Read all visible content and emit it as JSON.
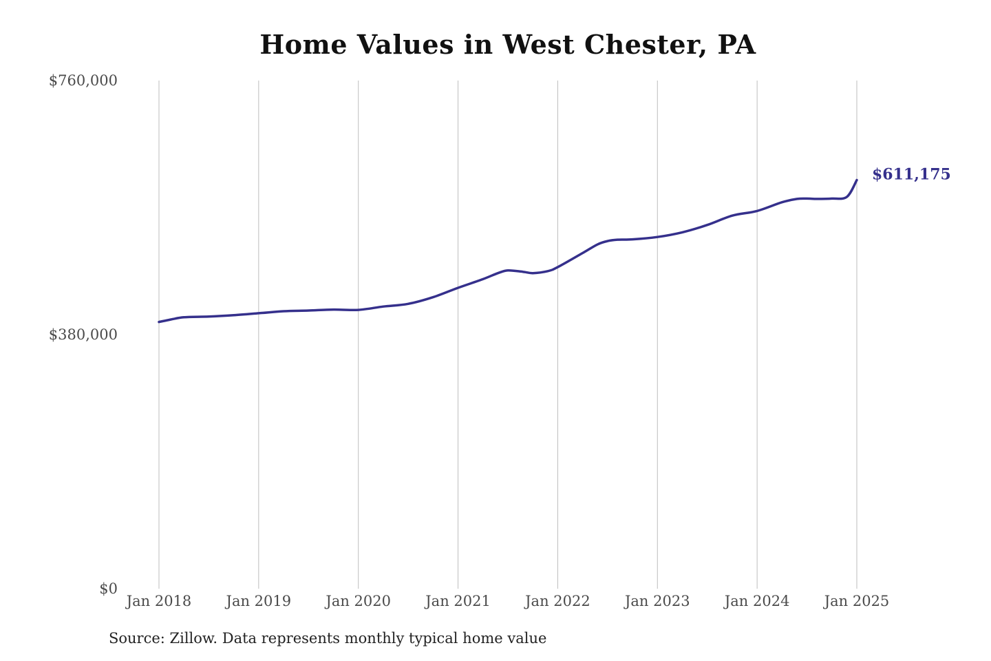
{
  "chart_data": {
    "type": "line",
    "title": "Home Values in West Chester, PA",
    "ylim": [
      0,
      760000
    ],
    "y_ticks": [
      {
        "value": 760000,
        "label": "$760,000"
      },
      {
        "value": 380000,
        "label": "$380,000"
      },
      {
        "value": 0,
        "label": "$0"
      }
    ],
    "x_ticks": [
      {
        "value": 2018,
        "label": "Jan 2018"
      },
      {
        "value": 2019,
        "label": "Jan 2019"
      },
      {
        "value": 2020,
        "label": "Jan 2020"
      },
      {
        "value": 2021,
        "label": "Jan 2021"
      },
      {
        "value": 2022,
        "label": "Jan 2022"
      },
      {
        "value": 2023,
        "label": "Jan 2023"
      },
      {
        "value": 2024,
        "label": "Jan 2024"
      },
      {
        "value": 2025,
        "label": "Jan 2025"
      }
    ],
    "grid": "vertical",
    "series": [
      {
        "color": "#35308c",
        "points": [
          {
            "x": 2018.0,
            "y": 399000
          },
          {
            "x": 2018.1,
            "y": 402000
          },
          {
            "x": 2018.25,
            "y": 406000
          },
          {
            "x": 2018.5,
            "y": 407000
          },
          {
            "x": 2018.75,
            "y": 409000
          },
          {
            "x": 2019.0,
            "y": 412000
          },
          {
            "x": 2019.25,
            "y": 415000
          },
          {
            "x": 2019.5,
            "y": 416000
          },
          {
            "x": 2019.75,
            "y": 417500
          },
          {
            "x": 2020.0,
            "y": 417000
          },
          {
            "x": 2020.25,
            "y": 422000
          },
          {
            "x": 2020.5,
            "y": 426000
          },
          {
            "x": 2020.75,
            "y": 436000
          },
          {
            "x": 2021.0,
            "y": 450000
          },
          {
            "x": 2021.25,
            "y": 463000
          },
          {
            "x": 2021.4,
            "y": 472000
          },
          {
            "x": 2021.5,
            "y": 476000
          },
          {
            "x": 2021.65,
            "y": 474000
          },
          {
            "x": 2021.75,
            "y": 472000
          },
          {
            "x": 2021.9,
            "y": 475000
          },
          {
            "x": 2022.0,
            "y": 481000
          },
          {
            "x": 2022.25,
            "y": 502000
          },
          {
            "x": 2022.4,
            "y": 515000
          },
          {
            "x": 2022.5,
            "y": 520000
          },
          {
            "x": 2022.6,
            "y": 522000
          },
          {
            "x": 2022.75,
            "y": 522500
          },
          {
            "x": 2023.0,
            "y": 526000
          },
          {
            "x": 2023.25,
            "y": 533000
          },
          {
            "x": 2023.5,
            "y": 544000
          },
          {
            "x": 2023.75,
            "y": 558000
          },
          {
            "x": 2024.0,
            "y": 565000
          },
          {
            "x": 2024.25,
            "y": 578000
          },
          {
            "x": 2024.4,
            "y": 583000
          },
          {
            "x": 2024.5,
            "y": 583500
          },
          {
            "x": 2024.6,
            "y": 583000
          },
          {
            "x": 2024.75,
            "y": 583500
          },
          {
            "x": 2024.9,
            "y": 586000
          },
          {
            "x": 2025.0,
            "y": 611175
          }
        ]
      }
    ],
    "end_label": "$611,175",
    "source": "Source: Zillow. Data represents monthly typical home value"
  }
}
